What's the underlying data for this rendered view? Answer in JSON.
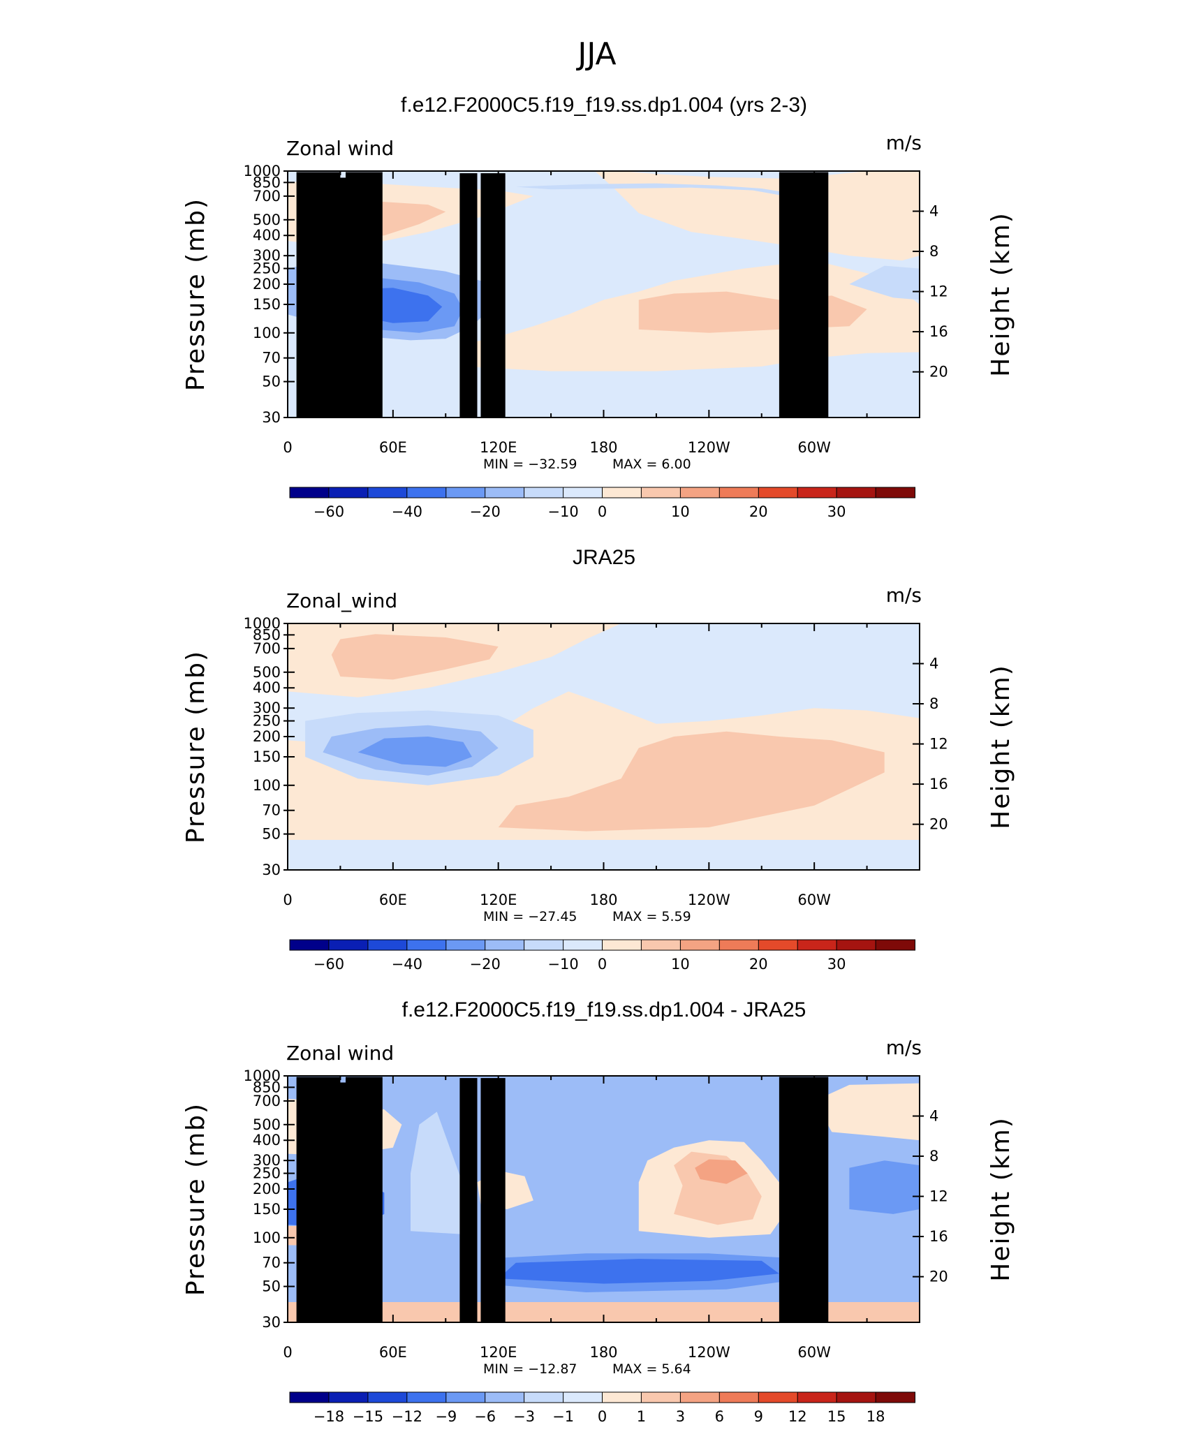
{
  "title": "JJA",
  "colors": {
    "neg_scale": [
      "#00008a",
      "#0a1fb4",
      "#1d49d8",
      "#3d72ee",
      "#6b99f4",
      "#9cbcf7",
      "#c7dbfa",
      "#dbe9fc"
    ],
    "pos_scale": [
      "#fde8d4",
      "#f9c8ae",
      "#f4a383",
      "#ee7b58",
      "#e44a2a",
      "#c9251a",
      "#a51410",
      "#7e0a08"
    ],
    "land": "#000000"
  },
  "panels": [
    {
      "id": "model",
      "title": "f.e12.F2000C5.f19_f19.ss.dp1.004 (yrs 2-3)",
      "left_label": "Zonal wind",
      "right_label": "m/s",
      "min_text": "MIN = −32.59",
      "max_text": "MAX =    6.00",
      "colorbar_labels": [
        "−60",
        "−40",
        "−20",
        "−10",
        "0",
        "10",
        "20",
        "30"
      ],
      "show_land": true
    },
    {
      "id": "obs",
      "title": "JRA25",
      "left_label": "Zonal_wind",
      "right_label": "m/s",
      "min_text": "MIN = −27.45",
      "max_text": "MAX =    5.59",
      "colorbar_labels": [
        "−60",
        "−40",
        "−20",
        "−10",
        "0",
        "10",
        "20",
        "30"
      ],
      "show_land": false
    },
    {
      "id": "diff",
      "title": "f.e12.F2000C5.f19_f19.ss.dp1.004 - JRA25",
      "left_label": "Zonal wind",
      "right_label": "m/s",
      "min_text": "MIN = −12.87",
      "max_text": "MAX =    5.64",
      "colorbar_labels": [
        "−18",
        "−15",
        "−12",
        "−9",
        "−6",
        "−3",
        "−1",
        "0",
        "1",
        "3",
        "6",
        "9",
        "12",
        "15",
        "18"
      ],
      "show_land": true
    }
  ],
  "chart_data": [
    {
      "type": "heatmap",
      "title": "f.e12.F2000C5.f19_f19.ss.dp1.004 (yrs 2-3)",
      "variable": "Zonal wind",
      "units": "m/s",
      "x_ticks": [
        "0",
        "60E",
        "120E",
        "180",
        "120W",
        "60W"
      ],
      "x_tick_values": [
        0,
        60,
        120,
        180,
        240,
        300
      ],
      "xlim": [
        0,
        360
      ],
      "y_ticks": [
        "30",
        "50",
        "70",
        "100",
        "150",
        "200",
        "250",
        "300",
        "400",
        "500",
        "700",
        "850",
        "1000"
      ],
      "y_tick_values": [
        30,
        50,
        70,
        100,
        150,
        200,
        250,
        300,
        400,
        500,
        700,
        850,
        1000
      ],
      "ylim": [
        1000,
        30
      ],
      "y2_ticks": [
        "20",
        "16",
        "12",
        "8",
        "4"
      ],
      "y2_tick_values": [
        20,
        16,
        12,
        8,
        4
      ],
      "ylabel": "Pressure (mb)",
      "y2label": "Height (km)",
      "min": -32.59,
      "max": 6.0,
      "levels": [
        -60,
        -50,
        -40,
        -30,
        -20,
        -15,
        -10,
        -5,
        0,
        5,
        10,
        15,
        20,
        25,
        30,
        35
      ],
      "features": [
        {
          "kind": "easterly_jet",
          "lon_range": [
            10,
            110
          ],
          "p_center": 150,
          "peak": -32.59
        },
        {
          "kind": "westerly_max",
          "lon_range": [
            200,
            320
          ],
          "p_center": 150,
          "peak": 6.0
        }
      ]
    },
    {
      "type": "heatmap",
      "title": "JRA25",
      "variable": "Zonal_wind",
      "units": "m/s",
      "x_ticks": [
        "0",
        "60E",
        "120E",
        "180",
        "120W",
        "60W"
      ],
      "x_tick_values": [
        0,
        60,
        120,
        180,
        240,
        300
      ],
      "xlim": [
        0,
        360
      ],
      "y_ticks": [
        "30",
        "50",
        "70",
        "100",
        "150",
        "200",
        "250",
        "300",
        "400",
        "500",
        "700",
        "850",
        "1000"
      ],
      "y_tick_values": [
        30,
        50,
        70,
        100,
        150,
        200,
        250,
        300,
        400,
        500,
        700,
        850,
        1000
      ],
      "ylim": [
        1000,
        30
      ],
      "y2_ticks": [
        "20",
        "16",
        "12",
        "8",
        "4"
      ],
      "y2_tick_values": [
        20,
        16,
        12,
        8,
        4
      ],
      "ylabel": "Pressure (mb)",
      "y2label": "Height (km)",
      "min": -27.45,
      "max": 5.59,
      "levels": [
        -60,
        -50,
        -40,
        -30,
        -20,
        -15,
        -10,
        -5,
        0,
        5,
        10,
        15,
        20,
        25,
        30,
        35
      ],
      "features": [
        {
          "kind": "easterly_jet",
          "lon_range": [
            20,
            140
          ],
          "p_center": 150,
          "peak": -27.45
        },
        {
          "kind": "westerly_band",
          "lon_range": [
            120,
            340
          ],
          "p_center": 100,
          "peak": 5.59
        }
      ]
    },
    {
      "type": "heatmap",
      "title": "f.e12.F2000C5.f19_f19.ss.dp1.004 - JRA25",
      "variable": "Zonal wind",
      "units": "m/s",
      "x_ticks": [
        "0",
        "60E",
        "120E",
        "180",
        "120W",
        "60W"
      ],
      "x_tick_values": [
        0,
        60,
        120,
        180,
        240,
        300
      ],
      "xlim": [
        0,
        360
      ],
      "y_ticks": [
        "30",
        "50",
        "70",
        "100",
        "150",
        "200",
        "250",
        "300",
        "400",
        "500",
        "700",
        "850",
        "1000"
      ],
      "y_tick_values": [
        30,
        50,
        70,
        100,
        150,
        200,
        250,
        300,
        400,
        500,
        700,
        850,
        1000
      ],
      "ylim": [
        1000,
        30
      ],
      "y2_ticks": [
        "20",
        "16",
        "12",
        "8",
        "4"
      ],
      "y2_tick_values": [
        20,
        16,
        12,
        8,
        4
      ],
      "ylabel": "Pressure (mb)",
      "y2label": "Height (km)",
      "min": -12.87,
      "max": 5.64,
      "levels": [
        -18,
        -15,
        -12,
        -9,
        -6,
        -3,
        -1,
        0,
        1,
        3,
        6,
        9,
        12,
        15,
        18
      ],
      "features": [
        {
          "kind": "negative_anomaly",
          "lon_range": [
            0,
            60
          ],
          "p_center": 150,
          "peak": -12.87
        },
        {
          "kind": "negative_band",
          "lon_range": [
            110,
            290
          ],
          "p_center": 60,
          "peak": -9
        },
        {
          "kind": "positive_anomaly",
          "lon_range": [
            220,
            270
          ],
          "p_center": 250,
          "peak": 5.64
        }
      ]
    }
  ]
}
